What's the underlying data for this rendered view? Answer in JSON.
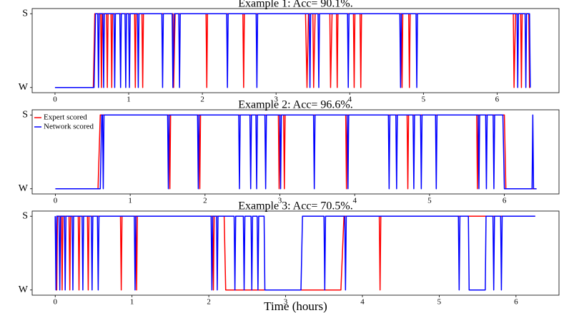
{
  "chart_data": [
    {
      "type": "line",
      "title": "Example 1: Acc= 90.1%.",
      "xlim": [
        -0.31,
        6.84
      ],
      "xticks": [
        0,
        1,
        2,
        3,
        4,
        5,
        6
      ],
      "ylim": [
        -0.07,
        1.07
      ],
      "yticks": [
        {
          "value": 0,
          "label": "W"
        },
        {
          "value": 1,
          "label": "S"
        }
      ],
      "series": [
        {
          "color": "#ff0000",
          "x": [
            0,
            0.52,
            0.54,
            0.62,
            0.63,
            0.64,
            0.7,
            0.71,
            0.72,
            0.76,
            0.77,
            0.78,
            1.08,
            1.09,
            1.1,
            1.18,
            1.19,
            1.2,
            1.6,
            1.61,
            1.63,
            2.05,
            2.06,
            2.07,
            2.55,
            2.56,
            2.57,
            3.4,
            3.42,
            3.44,
            3.5,
            3.51,
            3.53,
            3.73,
            3.74,
            3.76,
            3.82,
            3.83,
            3.84,
            4.05,
            4.06,
            4.07,
            4.14,
            4.15,
            4.16,
            4.7,
            4.71,
            4.72,
            4.8,
            4.81,
            4.82,
            6.22,
            6.23,
            6.25,
            6.32,
            6.33,
            6.34,
            6.43,
            6.44,
            6.45
          ],
          "values": [
            0,
            0,
            1,
            1,
            0,
            1,
            1,
            0,
            1,
            1,
            0,
            1,
            1,
            0,
            1,
            1,
            0,
            1,
            1,
            0,
            1,
            1,
            0,
            1,
            1,
            0,
            1,
            1,
            0,
            1,
            1,
            0,
            1,
            1,
            0,
            1,
            1,
            0,
            1,
            1,
            0,
            1,
            1,
            0,
            1,
            1,
            0,
            1,
            1,
            0,
            1,
            1,
            0,
            1,
            1,
            0,
            1,
            1,
            0,
            0
          ]
        },
        {
          "color": "#0000ff",
          "x": [
            0,
            0.53,
            0.55,
            0.58,
            0.59,
            0.6,
            0.65,
            0.66,
            0.67,
            0.8,
            0.81,
            0.82,
            0.88,
            0.89,
            0.9,
            0.95,
            0.96,
            0.97,
            1.0,
            1.01,
            1.02,
            1.12,
            1.13,
            1.14,
            1.45,
            1.46,
            1.47,
            1.59,
            1.6,
            1.62,
            1.68,
            1.69,
            1.7,
            2.33,
            2.34,
            2.35,
            2.73,
            2.74,
            2.75,
            3.45,
            3.46,
            3.47,
            3.57,
            3.58,
            3.59,
            3.97,
            3.98,
            3.99,
            4.68,
            4.69,
            4.7,
            4.9,
            4.91,
            4.92,
            6.27,
            6.28,
            6.29,
            6.38,
            6.39,
            6.4,
            6.44,
            6.45
          ],
          "values": [
            0,
            0,
            1,
            1,
            0,
            1,
            1,
            0,
            1,
            1,
            0,
            1,
            1,
            0,
            1,
            1,
            0,
            1,
            1,
            0,
            1,
            1,
            0,
            1,
            1,
            0,
            1,
            1,
            0,
            1,
            1,
            0,
            1,
            1,
            0,
            1,
            1,
            0,
            1,
            1,
            0,
            1,
            1,
            0,
            1,
            1,
            0,
            1,
            1,
            0,
            1,
            1,
            0,
            1,
            1,
            0,
            1,
            1,
            0,
            1,
            1,
            0
          ]
        }
      ]
    },
    {
      "type": "line",
      "title": "Example 2: Acc= 96.6%.",
      "legend": "upper left",
      "xlim": [
        -0.31,
        6.73
      ],
      "xticks": [
        0,
        1,
        2,
        3,
        4,
        5,
        6
      ],
      "ylim": [
        -0.07,
        1.07
      ],
      "yticks": [
        {
          "value": 0,
          "label": "W"
        },
        {
          "value": 1,
          "label": "S"
        }
      ],
      "series": [
        {
          "name": "Expert scored",
          "color": "#ff0000",
          "x": [
            0,
            0.57,
            0.6,
            1.52,
            1.53,
            1.54,
            1.92,
            1.93,
            1.94,
            2.98,
            2.99,
            3.0,
            3.05,
            3.06,
            3.07,
            3.88,
            3.89,
            3.9,
            4.7,
            4.71,
            4.72,
            5.63,
            5.64,
            5.65,
            6.0,
            6.02,
            6.43
          ],
          "values": [
            0,
            0,
            1,
            1,
            0,
            1,
            1,
            0,
            1,
            1,
            0,
            1,
            1,
            0,
            1,
            1,
            0,
            1,
            1,
            0,
            1,
            1,
            0,
            1,
            1,
            0,
            0
          ]
        },
        {
          "name": "Network scored",
          "color": "#0000ff",
          "x": [
            0,
            0.6,
            0.62,
            0.63,
            0.64,
            0.65,
            1.5,
            1.51,
            1.52,
            1.9,
            1.91,
            1.92,
            2.45,
            2.46,
            2.47,
            2.6,
            2.61,
            2.62,
            2.68,
            2.69,
            2.7,
            2.8,
            2.81,
            2.82,
            3.0,
            3.01,
            3.02,
            3.45,
            3.46,
            3.47,
            3.9,
            3.91,
            3.92,
            4.45,
            4.46,
            4.47,
            4.55,
            4.56,
            4.57,
            4.78,
            4.79,
            4.8,
            4.88,
            4.89,
            4.9,
            5.08,
            5.09,
            5.1,
            5.65,
            5.66,
            5.67,
            5.75,
            5.76,
            5.77,
            5.85,
            5.86,
            5.87,
            5.98,
            6.0,
            6.37,
            6.38,
            6.39,
            6.43
          ],
          "values": [
            0,
            0,
            1,
            1,
            0,
            1,
            1,
            0,
            1,
            1,
            0,
            1,
            1,
            0,
            1,
            1,
            0,
            1,
            1,
            0,
            1,
            1,
            0,
            1,
            1,
            0,
            1,
            1,
            0,
            1,
            1,
            0,
            1,
            1,
            0,
            1,
            1,
            0,
            1,
            1,
            0,
            1,
            1,
            0,
            1,
            1,
            0,
            1,
            1,
            0,
            1,
            1,
            0,
            1,
            1,
            0,
            1,
            1,
            0,
            0,
            1,
            0,
            0
          ]
        }
      ]
    },
    {
      "type": "line",
      "title": "Example 3: Acc= 70.5%.",
      "xlabel": "Time (hours)",
      "xlim": [
        -0.3,
        6.56
      ],
      "xticks": [
        0,
        1,
        2,
        3,
        4,
        5,
        6
      ],
      "ylim": [
        -0.07,
        1.07
      ],
      "yticks": [
        {
          "value": 0,
          "label": "W"
        },
        {
          "value": 1,
          "label": "S"
        }
      ],
      "series": [
        {
          "color": "#ff0000",
          "x": [
            0,
            0.02,
            0.03,
            0.08,
            0.09,
            0.1,
            0.18,
            0.19,
            0.2,
            0.3,
            0.31,
            0.32,
            0.42,
            0.43,
            0.44,
            0.85,
            0.86,
            0.87,
            1.05,
            1.06,
            1.07,
            2.05,
            2.06,
            2.07,
            2.2,
            2.22,
            3.72,
            3.76,
            4.22,
            4.23,
            4.24,
            6.25
          ],
          "values": [
            1,
            0,
            1,
            1,
            0,
            1,
            1,
            0,
            1,
            1,
            0,
            1,
            1,
            0,
            1,
            1,
            0,
            1,
            1,
            0,
            1,
            1,
            0,
            1,
            1,
            0,
            0,
            1,
            1,
            0,
            1,
            1
          ]
        },
        {
          "color": "#0000ff",
          "x": [
            0,
            0.01,
            0.02,
            0.05,
            0.06,
            0.07,
            0.12,
            0.13,
            0.14,
            0.22,
            0.23,
            0.24,
            0.35,
            0.36,
            0.37,
            0.47,
            0.48,
            0.49,
            0.55,
            0.56,
            0.57,
            1.03,
            1.04,
            1.05,
            2.03,
            2.04,
            2.05,
            2.1,
            2.11,
            2.12,
            2.33,
            2.34,
            2.35,
            2.45,
            2.46,
            2.47,
            2.55,
            2.56,
            2.57,
            2.63,
            2.64,
            2.65,
            2.72,
            2.73,
            3.2,
            3.22,
            3.5,
            3.51,
            3.52,
            3.77,
            3.78,
            3.79,
            5.25,
            5.26,
            5.27,
            5.38,
            5.39,
            5.6,
            5.61,
            5.7,
            5.71,
            5.72,
            5.8,
            5.81,
            5.82,
            6.25
          ],
          "values": [
            1,
            0,
            1,
            1,
            0,
            1,
            1,
            0,
            1,
            1,
            0,
            1,
            1,
            0,
            1,
            1,
            0,
            1,
            1,
            0,
            1,
            1,
            0,
            1,
            1,
            0,
            1,
            1,
            0,
            1,
            1,
            0,
            1,
            1,
            0,
            1,
            1,
            0,
            1,
            1,
            0,
            1,
            1,
            0,
            0,
            1,
            1,
            0,
            1,
            1,
            0,
            1,
            1,
            0,
            1,
            1,
            0,
            0,
            1,
            1,
            0,
            1,
            1,
            0,
            1,
            1
          ]
        }
      ]
    }
  ]
}
